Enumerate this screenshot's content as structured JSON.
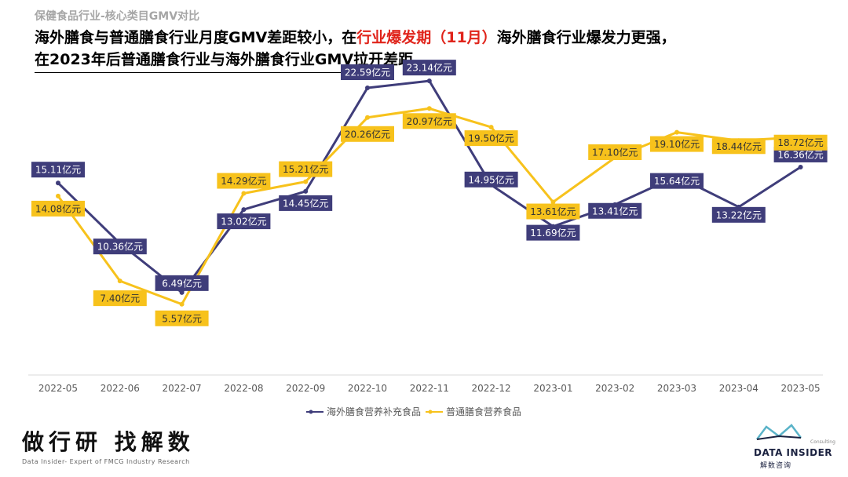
{
  "header": {
    "category": "保健食品行业-核心类目GMV对比",
    "headline_line1_prefix": "海外膳食与普通膳食行业月度GMV差距较小，在",
    "headline_line1_highlight": "行业爆发期（11月）",
    "headline_line1_suffix": "海外膳食行业爆发力更强，",
    "headline_line2": "在2023年后普通膳食行业与海外膳食行业GMV拉开差距"
  },
  "chart_data": {
    "type": "line",
    "categories": [
      "2022-05",
      "2022-06",
      "2022-07",
      "2022-08",
      "2022-09",
      "2022-10",
      "2022-11",
      "2022-12",
      "2023-01",
      "2023-02",
      "2023-03",
      "2023-04",
      "2023-05"
    ],
    "series": [
      {
        "name": "海外膳食营养补充食品",
        "color": "#3f3d7a",
        "values": [
          15.11,
          10.36,
          6.49,
          13.02,
          14.45,
          22.59,
          23.14,
          14.95,
          11.69,
          13.41,
          15.64,
          13.22,
          16.36
        ],
        "labels": [
          "15.11亿元",
          "10.36亿元",
          "6.49亿元",
          "13.02亿元",
          "14.45亿元",
          "22.59亿元",
          "23.14亿元",
          "14.95亿元",
          "11.69亿元",
          "13.41亿元",
          "15.64亿元",
          "13.22亿元",
          "16.36亿元"
        ]
      },
      {
        "name": "普通膳食营养食品",
        "color": "#f7c21c",
        "values": [
          14.08,
          7.4,
          5.57,
          14.29,
          15.21,
          20.26,
          20.97,
          19.5,
          13.61,
          17.1,
          19.1,
          18.44,
          18.72
        ],
        "labels": [
          "14.08亿元",
          "7.40亿元",
          "5.57亿元",
          "14.29亿元",
          "15.21亿元",
          "20.26亿元",
          "20.97亿元",
          "19.50亿元",
          "13.61亿元",
          "17.10亿元",
          "19.10亿元",
          "18.44亿元",
          "18.72亿元"
        ]
      }
    ],
    "unit": "亿元",
    "ylim": [
      0,
      25
    ],
    "grid": false,
    "legend": "bottom"
  },
  "footer": {
    "brand_cn": "做行研 找解数",
    "brand_en": "Data Insider- Expert of FMCG Industry Research",
    "logo_consulting": "Consulting",
    "logo_name": "DATA INSIDER",
    "logo_sub": "解数咨询"
  }
}
